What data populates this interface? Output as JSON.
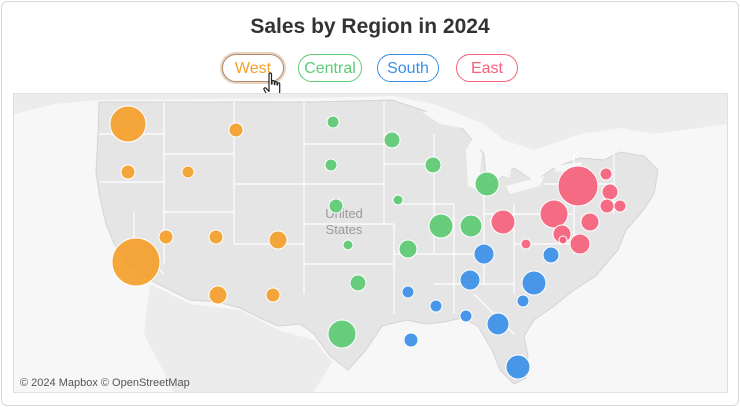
{
  "title": "Sales by Region in 2024",
  "legend": [
    {
      "label": "West",
      "color": "#f5a02a",
      "active": true
    },
    {
      "label": "Central",
      "color": "#5ccb74",
      "active": false
    },
    {
      "label": "South",
      "color": "#3b8fe8",
      "active": false
    },
    {
      "label": "East",
      "color": "#f5617b",
      "active": false
    }
  ],
  "map": {
    "country_label": [
      "United",
      "States"
    ],
    "attribution": "© 2024 Mapbox © OpenStreetMap"
  },
  "colors": {
    "West": "#f5a02a",
    "Central": "#5ccb74",
    "South": "#3b8fe8",
    "East": "#f5617b",
    "land": "#e5e5e5",
    "water": "#f7f7f7",
    "border": "#ffffff"
  }
}
